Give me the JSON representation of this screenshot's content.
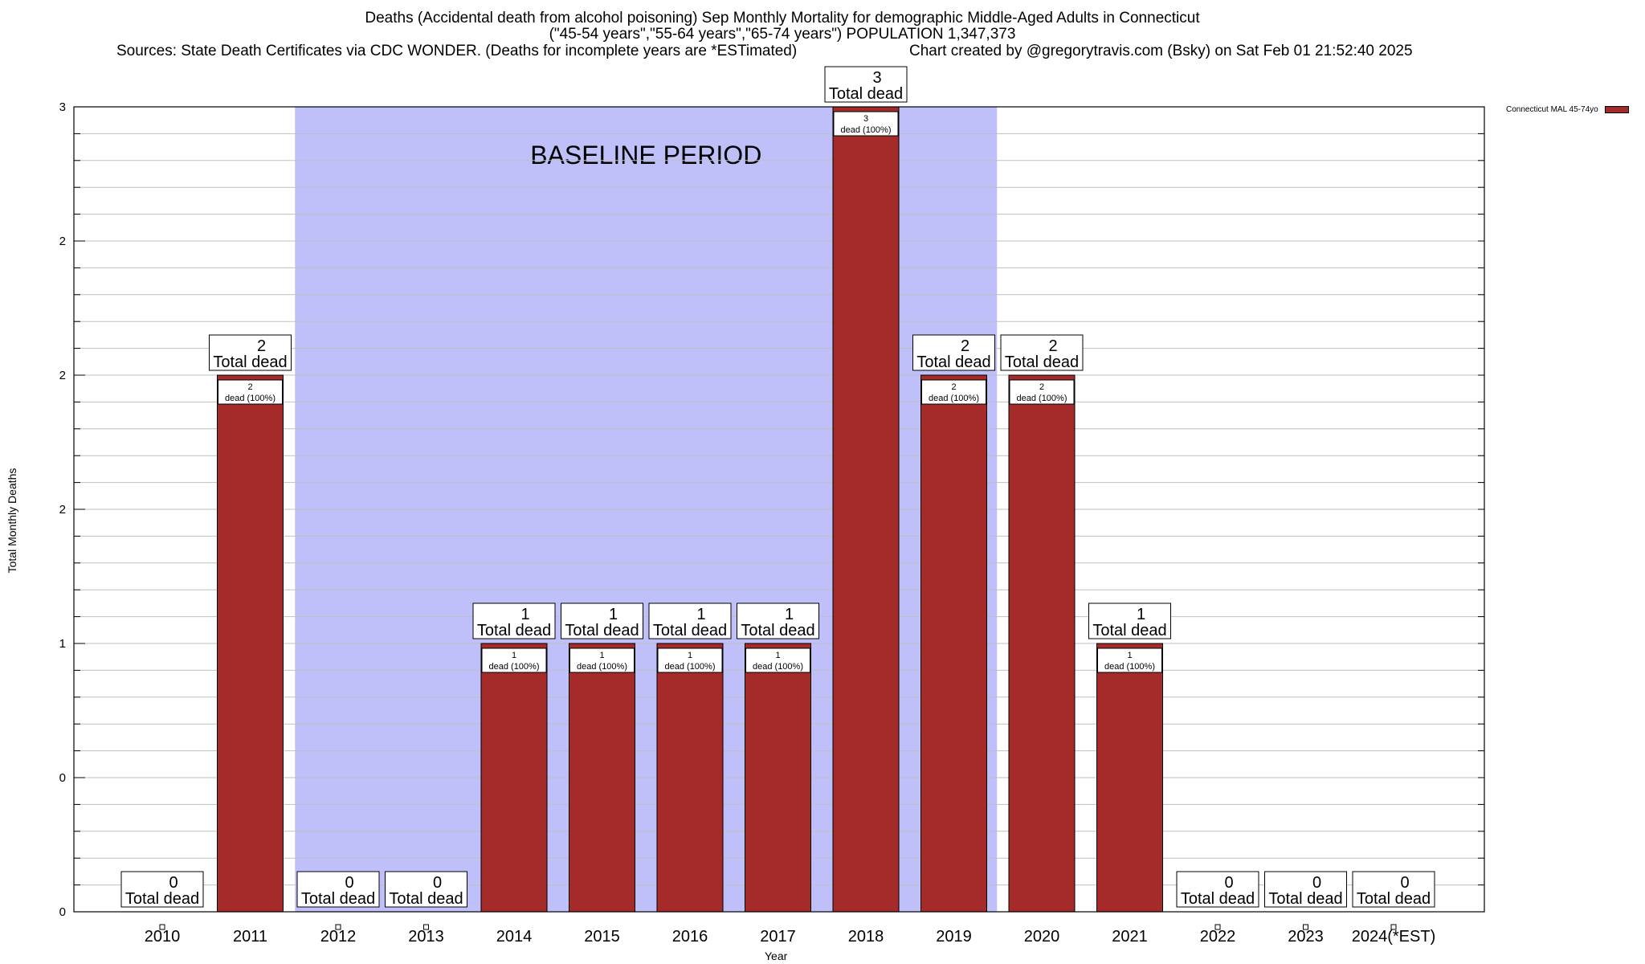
{
  "chart_data": {
    "type": "bar",
    "title_line1": "Deaths (Accidental death from alcohol poisoning) Sep Monthly Mortality for demographic Middle-Aged Adults in Connecticut",
    "title_line2": "(\"45-54 years\",\"55-64 years\",\"65-74 years\") POPULATION 1,347,373",
    "title_line3_left": "Sources: State Death Certificates via CDC WONDER. (Deaths for incomplete years are *ESTimated)",
    "title_line3_right": "Chart created by @gregorytravis.com (Bsky) on Sat Feb 01 21:52:40 2025",
    "xlabel": "Year",
    "ylabel": "Total Monthly Deaths",
    "ylim": [
      0,
      3
    ],
    "yticks": [
      0,
      0.5,
      1,
      1.5,
      2,
      2.5,
      3
    ],
    "ytick_labels": [
      "0",
      "0",
      "1",
      "2",
      "2",
      "2",
      "3"
    ],
    "categories": [
      "2010",
      "2011",
      "2012",
      "2013",
      "2014",
      "2015",
      "2016",
      "2017",
      "2018",
      "2019",
      "2020",
      "2021",
      "2022",
      "2023",
      "2024(*EST)"
    ],
    "series": [
      {
        "name": "Connecticut MAL 45-74yo",
        "values": [
          0,
          2,
          0,
          0,
          1,
          1,
          1,
          1,
          3,
          2,
          2,
          1,
          0,
          0,
          0
        ],
        "color": "#a52a2a"
      }
    ],
    "total_label_suffix": "Total dead",
    "bar_label_suffix": "dead (100%)",
    "baseline": {
      "label": "BASELINE PERIOD",
      "start_index": 2,
      "end_index": 9,
      "color": "#bfbff9"
    },
    "grid": true,
    "legend_position": "top-right"
  }
}
